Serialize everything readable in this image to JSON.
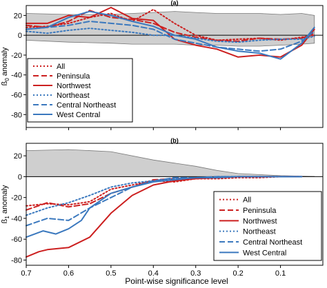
{
  "x_axis": {
    "label": "Point-wise significance level",
    "ticks": [
      0.7,
      0.6,
      0.5,
      0.4,
      0.3,
      0.2,
      0.1
    ],
    "tick_labels": [
      "0.7",
      "0.6",
      "0.5",
      "0.4",
      "0.3",
      "0.2",
      "0.1"
    ]
  },
  "chart_data": [
    {
      "type": "line",
      "panel": "(a)",
      "title": "(a)",
      "ylabel": "ß0 anomaly",
      "ylabel_base": "ß",
      "ylabel_sub": "0",
      "ylabel_rest": " anomaly",
      "xlim": [
        0.7,
        0.0
      ],
      "ylim": [
        -93,
        30
      ],
      "y_ticks": [
        20,
        0,
        -20,
        -40,
        -60,
        -80
      ],
      "y_tick_labels": [
        "20",
        "0",
        "-20",
        "-40",
        "-60",
        "-80"
      ],
      "zero_line": true,
      "legend_position": "left-center",
      "envelope": {
        "x": [
          0.7,
          0.6,
          0.5,
          0.45,
          0.4,
          0.35,
          0.3,
          0.25,
          0.2,
          0.15,
          0.1,
          0.05,
          0.02
        ],
        "upper": [
          22,
          21,
          21,
          22,
          23,
          24,
          23,
          22,
          22,
          22,
          21,
          22,
          20
        ],
        "lower": [
          -5,
          -7,
          -8,
          -9,
          -9,
          -9,
          -10,
          -10,
          -11,
          -11,
          -10,
          -9,
          -8
        ]
      },
      "series": [
        {
          "name": "All",
          "color": "#cc1f1f",
          "dash": "dot",
          "x": [
            0.7,
            0.65,
            0.6,
            0.55,
            0.5,
            0.45,
            0.4,
            0.35,
            0.3,
            0.25,
            0.2,
            0.15,
            0.1,
            0.05,
            0.02
          ],
          "y": [
            8,
            9,
            12,
            18,
            22,
            14,
            26,
            12,
            0,
            -5,
            -4,
            -3,
            -5,
            -2,
            0
          ]
        },
        {
          "name": "Peninsula",
          "color": "#cc1f1f",
          "dash": "dash",
          "x": [
            0.7,
            0.65,
            0.6,
            0.55,
            0.5,
            0.45,
            0.4,
            0.35,
            0.3,
            0.25,
            0.2,
            0.15,
            0.1,
            0.05,
            0.02
          ],
          "y": [
            10,
            8,
            14,
            25,
            18,
            16,
            12,
            3,
            -2,
            -5,
            -6,
            -3,
            -4,
            -3,
            2
          ]
        },
        {
          "name": "Northwest",
          "color": "#cc1f1f",
          "dash": "solid",
          "x": [
            0.7,
            0.65,
            0.6,
            0.55,
            0.5,
            0.45,
            0.4,
            0.35,
            0.3,
            0.25,
            0.2,
            0.15,
            0.1,
            0.05,
            0.02
          ],
          "y": [
            12,
            12,
            20,
            18,
            28,
            17,
            15,
            -4,
            -10,
            -14,
            -22,
            -20,
            -22,
            -10,
            6
          ]
        },
        {
          "name": "Northeast",
          "color": "#3a78be",
          "dash": "dot",
          "x": [
            0.7,
            0.65,
            0.6,
            0.55,
            0.5,
            0.45,
            0.4,
            0.35,
            0.3,
            0.25,
            0.2,
            0.15,
            0.1,
            0.05,
            0.02
          ],
          "y": [
            4,
            2,
            5,
            7,
            5,
            3,
            0,
            0,
            -3,
            -6,
            -7,
            -5,
            -4,
            -4,
            -1
          ]
        },
        {
          "name": "Central Northeast",
          "color": "#3a78be",
          "dash": "dash",
          "x": [
            0.7,
            0.65,
            0.6,
            0.55,
            0.5,
            0.45,
            0.4,
            0.35,
            0.3,
            0.25,
            0.2,
            0.15,
            0.1,
            0.05,
            0.02
          ],
          "y": [
            6,
            8,
            10,
            14,
            12,
            10,
            6,
            -4,
            -8,
            -12,
            -14,
            -16,
            -14,
            -6,
            4
          ]
        },
        {
          "name": "West Central",
          "color": "#3a78be",
          "dash": "solid",
          "x": [
            0.7,
            0.65,
            0.6,
            0.55,
            0.5,
            0.45,
            0.4,
            0.35,
            0.3,
            0.25,
            0.2,
            0.15,
            0.1,
            0.05,
            0.02
          ],
          "y": [
            6,
            8,
            18,
            24,
            20,
            14,
            9,
            0,
            -4,
            -12,
            -16,
            -18,
            -24,
            -8,
            8
          ]
        }
      ]
    },
    {
      "type": "line",
      "panel": "(b)",
      "title": "(b)",
      "ylabel": "ß1 anomaly",
      "ylabel_base": "ß",
      "ylabel_sub": "1",
      "ylabel_rest": " anomaly",
      "xlim": [
        0.7,
        0.0
      ],
      "ylim": [
        -85,
        32
      ],
      "y_ticks": [
        20,
        0,
        -20,
        -40,
        -60,
        -80
      ],
      "y_tick_labels": [
        "20",
        "0",
        "-20",
        "-40",
        "-60",
        "-80"
      ],
      "zero_line": true,
      "legend_position": "bottom-right",
      "envelope": {
        "x": [
          0.7,
          0.6,
          0.5,
          0.4,
          0.3,
          0.25,
          0.2,
          0.15,
          0.1,
          0.05,
          0.02
        ],
        "upper": [
          25,
          26,
          24,
          16,
          10,
          6,
          3,
          2,
          1,
          0.5,
          0.3
        ],
        "lower": [
          0,
          0,
          0,
          0,
          0,
          0,
          0,
          0,
          0,
          0,
          0
        ]
      },
      "series": [
        {
          "name": "All",
          "color": "#cc1f1f",
          "dash": "dot",
          "x": [
            0.7,
            0.65,
            0.6,
            0.55,
            0.5,
            0.45,
            0.4,
            0.35,
            0.3,
            0.25,
            0.2,
            0.15,
            0.1,
            0.05
          ],
          "y": [
            -28,
            -26,
            -27,
            -24,
            -12,
            -8,
            -4,
            -5,
            -2,
            -2,
            -1,
            -1,
            0,
            0
          ]
        },
        {
          "name": "Peninsula",
          "color": "#cc1f1f",
          "dash": "dash",
          "x": [
            0.7,
            0.65,
            0.6,
            0.55,
            0.5,
            0.45,
            0.4,
            0.35,
            0.3,
            0.25,
            0.2,
            0.15,
            0.1,
            0.05
          ],
          "y": [
            -32,
            -25,
            -29,
            -26,
            -16,
            -10,
            -3,
            -2,
            -1,
            -1,
            0,
            0,
            0,
            0
          ]
        },
        {
          "name": "Northwest",
          "color": "#cc1f1f",
          "dash": "solid",
          "x": [
            0.7,
            0.67,
            0.65,
            0.6,
            0.55,
            0.5,
            0.45,
            0.4,
            0.35,
            0.3,
            0.25,
            0.2,
            0.15,
            0.1,
            0.05
          ],
          "y": [
            -77,
            -72,
            -70,
            -68,
            -58,
            -35,
            -18,
            -8,
            -4,
            -2,
            -1,
            0,
            0,
            0,
            0
          ]
        },
        {
          "name": "Northeast",
          "color": "#3a78be",
          "dash": "dot",
          "x": [
            0.7,
            0.65,
            0.6,
            0.55,
            0.5,
            0.45,
            0.4,
            0.35,
            0.3,
            0.25,
            0.2,
            0.15,
            0.1,
            0.05
          ],
          "y": [
            -37,
            -30,
            -25,
            -18,
            -10,
            -6,
            -4,
            -2,
            -1,
            0,
            0,
            0,
            0,
            0
          ]
        },
        {
          "name": "Central Northeast",
          "color": "#3a78be",
          "dash": "dash",
          "x": [
            0.7,
            0.65,
            0.6,
            0.55,
            0.5,
            0.45,
            0.4,
            0.35,
            0.3,
            0.25,
            0.2,
            0.15,
            0.1,
            0.05
          ],
          "y": [
            -47,
            -40,
            -42,
            -30,
            -20,
            -10,
            -4,
            -1,
            -1,
            0,
            0,
            0,
            0,
            0
          ]
        },
        {
          "name": "West Central",
          "color": "#3a78be",
          "dash": "solid",
          "x": [
            0.7,
            0.66,
            0.63,
            0.6,
            0.57,
            0.55,
            0.5,
            0.45,
            0.4,
            0.35,
            0.3,
            0.25,
            0.2,
            0.15,
            0.1,
            0.05
          ],
          "y": [
            -58,
            -52,
            -55,
            -50,
            -42,
            -30,
            -16,
            -10,
            -5,
            -3,
            -1,
            -1,
            0,
            0,
            0,
            0
          ]
        }
      ]
    }
  ]
}
